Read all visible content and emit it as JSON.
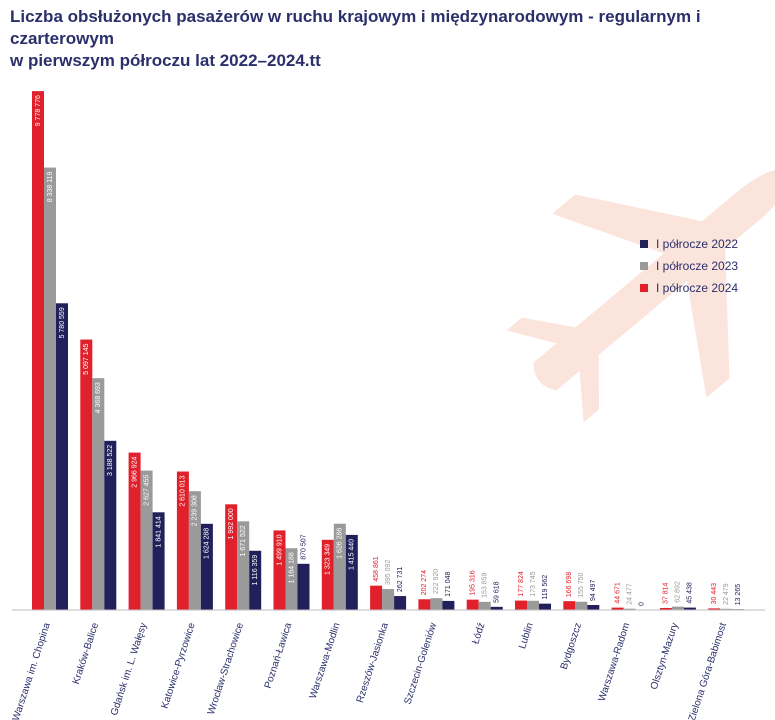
{
  "title": {
    "line1": "Liczba obsłużonych pasażerów w ruchu krajowym i międzynarodowym - regularnym i czarterowym",
    "line2": "w pierwszym półroczu lat 2022–2024.tt"
  },
  "legend": [
    {
      "label": "I półrocze 2022",
      "color": "#22205a"
    },
    {
      "label": "I półrocze 2023",
      "color": "#9a9a9a"
    },
    {
      "label": "I półrocze 2024",
      "color": "#e0212b"
    }
  ],
  "colors": {
    "bar2024": "#e0212b",
    "bar2023": "#9a9a9a",
    "bar2022": "#22205a",
    "axis": "#2b2f6a",
    "watermark": "#fbe4dc"
  },
  "icons": {
    "background": "airplane-icon"
  },
  "chart_data": {
    "type": "bar",
    "title": "Liczba obsłużonych pasażerów w ruchu krajowym i międzynarodowym - regularnym i czarterowym w pierwszym półroczu lat 2022–2024.tt",
    "categories": [
      "Warszawa im. Chopina",
      "Kraków-Balice",
      "Gdańsk im. L. Wałęsy",
      "Katowice-Pyrzowice",
      "Wrocław-Strachowice",
      "Poznań-Ławica",
      "Warszawa-Modlin",
      "Rzeszów-Jasionka",
      "Szczecin-Goleniów",
      "Łódź",
      "Lublin",
      "Bydgoszcz",
      "Warszawa-Radom",
      "Olsztyn-Mazury",
      "Zielona Góra-Babimost"
    ],
    "series": [
      {
        "name": "I półrocze 2024",
        "values": [
          9778776,
          5097145,
          2966924,
          2610013,
          1992000,
          1499910,
          1323349,
          458861,
          202274,
          195316,
          177824,
          166698,
          44671,
          37814,
          30443
        ],
        "labels": [
          "9 778 776",
          "5 097 145",
          "2 966 924",
          "2 610 013",
          "1 992 000",
          "1 499 910",
          "1 323 349",
          "458 861",
          "202 274",
          "195 316",
          "177 824",
          "166 698",
          "44 671",
          "37 814",
          "30 443"
        ]
      },
      {
        "name": "I półrocze 2023",
        "values": [
          8338119,
          4368693,
          2627455,
          2239308,
          1671522,
          1164188,
          1626286,
          395092,
          222920,
          153859,
          173745,
          155750,
          24477,
          62892,
          22479
        ],
        "labels": [
          "8 338 119",
          "4 368 693",
          "2 627 455",
          "2 239 308",
          "1 671 522",
          "1 164 188",
          "1 626 286",
          "395 092",
          "222 920",
          "153 859",
          "173 745",
          "155 750",
          "24 477",
          "62 892",
          "22 479"
        ]
      },
      {
        "name": "I półrocze 2022",
        "values": [
          5780559,
          3188522,
          1841414,
          1624288,
          1116359,
          870507,
          1415440,
          262731,
          171048,
          59618,
          119562,
          94497,
          0,
          45438,
          13265
        ],
        "labels": [
          "5 780 559",
          "3 188 522",
          "1 841 414",
          "1 624 288",
          "1 116 359",
          "870 507",
          "1 415 440",
          "262 731",
          "171 048",
          "59 618",
          "119 562",
          "94 497",
          "0",
          "45 438",
          "13 265"
        ]
      }
    ],
    "ylim": [
      0,
      9800000
    ],
    "grid": false,
    "legend_position": "right"
  }
}
